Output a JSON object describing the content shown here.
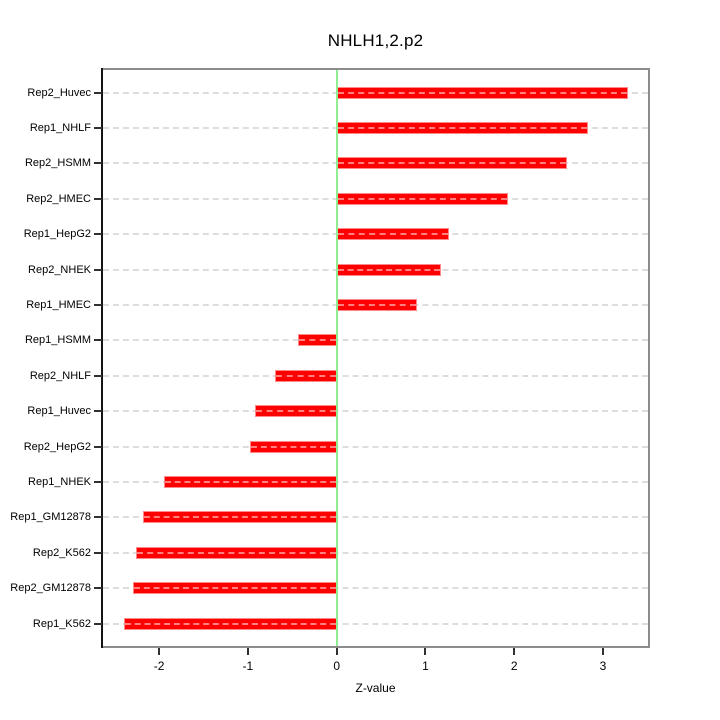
{
  "figure": {
    "title": "NHLH1,2.p2",
    "xlabel": "Z-value"
  },
  "chart_data": {
    "type": "bar",
    "orientation": "horizontal",
    "title": "NHLH1,2.p2",
    "xlabel": "Z-value",
    "ylabel": "",
    "categories": [
      "Rep2_Huvec",
      "Rep1_NHLF",
      "Rep2_HSMM",
      "Rep2_HMEC",
      "Rep1_HepG2",
      "Rep2_NHEK",
      "Rep1_HMEC",
      "Rep1_HSMM",
      "Rep2_NHLF",
      "Rep1_Huvec",
      "Rep2_HepG2",
      "Rep1_NHEK",
      "Rep1_GM12878",
      "Rep2_K562",
      "Rep2_GM12878",
      "Rep1_K562"
    ],
    "values": [
      3.28,
      2.83,
      2.59,
      1.93,
      1.26,
      1.18,
      0.91,
      -0.44,
      -0.7,
      -0.92,
      -0.98,
      -1.95,
      -2.18,
      -2.26,
      -2.29,
      -2.4
    ],
    "x_ticks": [
      -2,
      -1,
      0,
      1,
      2,
      3
    ],
    "x_tick_labels": [
      "-2",
      "-1",
      "0",
      "1",
      "2",
      "3"
    ],
    "xlim": [
      -2.632,
      3.507
    ],
    "zero_line_value": 0,
    "grid": "dashed horizontal line per category",
    "legend": null,
    "colors": {
      "bar": "#FF0000",
      "bar_edge": "#FF8989",
      "zero_line": "#90EE90",
      "gridline": "#DDDDDD",
      "frame": "#8C8C8C",
      "axis": "#141414",
      "text": "#000000",
      "background": "#FFFFFF"
    }
  }
}
